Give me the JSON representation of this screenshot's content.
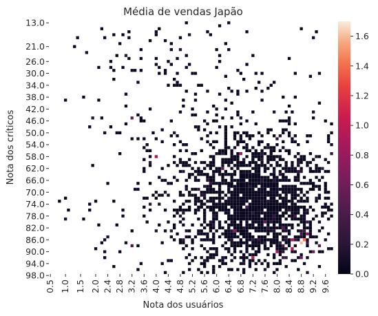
{
  "chart_data": {
    "type": "heatmap",
    "title": "Média de vendas Japão",
    "xlabel": "Nota dos usuários",
    "ylabel": "Nota dos críticos",
    "x_tick_labels": [
      "0.5",
      "1.0",
      "1.5",
      "2.0",
      "2.4",
      "2.8",
      "3.2",
      "3.6",
      "4.0",
      "4.4",
      "4.8",
      "5.2",
      "5.6",
      "6.0",
      "6.4",
      "6.8",
      "7.2",
      "7.6",
      "8.0",
      "8.4",
      "8.8",
      "9.2",
      "9.6"
    ],
    "y_tick_labels": [
      "13.0",
      "21.0",
      "26.0",
      "30.0",
      "34.0",
      "38.0",
      "42.0",
      "46.0",
      "50.0",
      "54.0",
      "58.0",
      "62.0",
      "66.0",
      "70.0",
      "74.0",
      "78.0",
      "82.0",
      "86.0",
      "90.0",
      "94.0",
      "98.0"
    ],
    "x_range": [
      0.5,
      9.7
    ],
    "y_range": [
      13,
      98
    ],
    "colorbar": {
      "min": 0.0,
      "max": 1.7,
      "tick_labels": [
        "0.0",
        "0.2",
        "0.4",
        "0.6",
        "0.8",
        "1.0",
        "1.2",
        "1.4",
        "1.6"
      ],
      "tick_values": [
        0.0,
        0.2,
        0.4,
        0.6,
        0.8,
        1.0,
        1.2,
        1.4,
        1.6
      ],
      "colormap": "rocket"
    },
    "highlight_cells": [
      {
        "user_score": 8.8,
        "critic_score": 87,
        "value": 1.6
      },
      {
        "user_score": 8.9,
        "critic_score": 86,
        "value": 1.4
      },
      {
        "user_score": 8.5,
        "critic_score": 89,
        "value": 1.0
      },
      {
        "user_score": 7.2,
        "critic_score": 92,
        "value": 1.0
      },
      {
        "user_score": 8.0,
        "critic_score": 90,
        "value": 0.9
      },
      {
        "user_score": 6.8,
        "critic_score": 57,
        "value": 0.9
      },
      {
        "user_score": 4.0,
        "critic_score": 58,
        "value": 0.9
      },
      {
        "user_score": 8.5,
        "critic_score": 86,
        "value": 0.8
      },
      {
        "user_score": 9.0,
        "critic_score": 84,
        "value": 0.7
      },
      {
        "user_score": 6.6,
        "critic_score": 83,
        "value": 0.7
      },
      {
        "user_score": 9.2,
        "critic_score": 90,
        "value": 0.6
      },
      {
        "user_score": 8.8,
        "critic_score": 92,
        "value": 0.6
      },
      {
        "user_score": 7.6,
        "critic_score": 80,
        "value": 0.5
      },
      {
        "user_score": 6.2,
        "critic_score": 62,
        "value": 0.5
      },
      {
        "user_score": 9.4,
        "critic_score": 88,
        "value": 0.5
      },
      {
        "user_score": 8.2,
        "critic_score": 82,
        "value": 0.5
      },
      {
        "user_score": 3.2,
        "critic_score": 45,
        "value": 0.5
      },
      {
        "user_score": 3.2,
        "critic_score": 88,
        "value": 0.4
      },
      {
        "user_score": 7.0,
        "critic_score": 75,
        "value": 0.4
      },
      {
        "user_score": 8.6,
        "critic_score": 78,
        "value": 0.4
      },
      {
        "user_score": 5.8,
        "critic_score": 67,
        "value": 0.3
      },
      {
        "user_score": 7.4,
        "critic_score": 86,
        "value": 0.3
      },
      {
        "user_score": 9.0,
        "critic_score": 80,
        "value": 0.3
      }
    ]
  }
}
